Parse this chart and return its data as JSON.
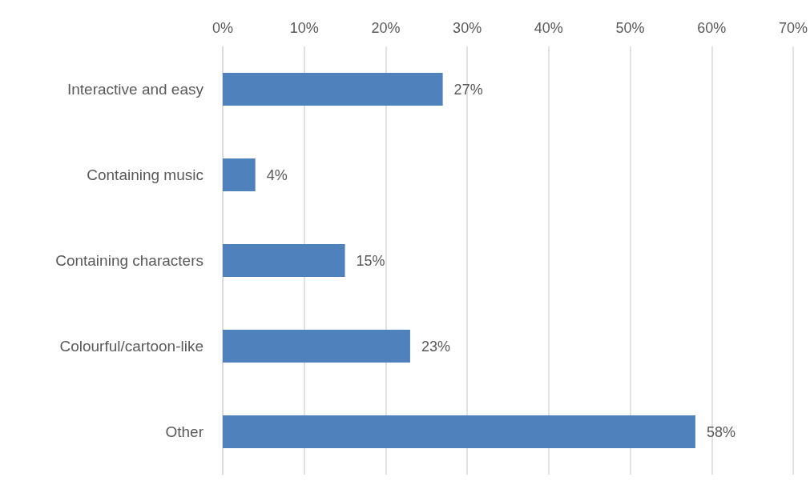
{
  "chart_data": {
    "type": "bar",
    "orientation": "horizontal",
    "categories": [
      "Interactive and easy",
      "Containing music",
      "Containing characters",
      "Colourful/cartoon-like",
      "Other"
    ],
    "values": [
      27,
      4,
      15,
      23,
      58
    ],
    "value_labels": [
      "27%",
      "4%",
      "15%",
      "23%",
      "58%"
    ],
    "color": "#4f81bd",
    "xlim": [
      0,
      70
    ],
    "xticks": [
      {
        "value": 0,
        "label": "0%"
      },
      {
        "value": 10,
        "label": "10%"
      },
      {
        "value": 20,
        "label": "20%"
      },
      {
        "value": 30,
        "label": "30%"
      },
      {
        "value": 40,
        "label": "40%"
      },
      {
        "value": 50,
        "label": "50%"
      },
      {
        "value": 60,
        "label": "60%"
      },
      {
        "value": 70,
        "label": "70%"
      }
    ],
    "grid": "x"
  }
}
